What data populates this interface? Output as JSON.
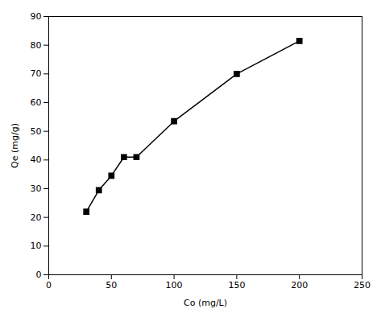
{
  "chart_data": {
    "type": "line",
    "x": [
      30,
      40,
      50,
      60,
      70,
      100,
      150,
      200
    ],
    "values": [
      22,
      29.5,
      34.5,
      41,
      41,
      53.5,
      70,
      81.5
    ],
    "xlabel": "Co (mg/L)",
    "ylabel": "Qe (mg/g)",
    "xlim": [
      0,
      250
    ],
    "ylim": [
      0,
      90
    ],
    "xticks": [
      0,
      50,
      100,
      150,
      200,
      250
    ],
    "yticks": [
      0,
      10,
      20,
      30,
      40,
      50,
      60,
      70,
      80,
      90
    ],
    "color": "black",
    "marker": "square",
    "line_style": "solid",
    "grid": false
  }
}
